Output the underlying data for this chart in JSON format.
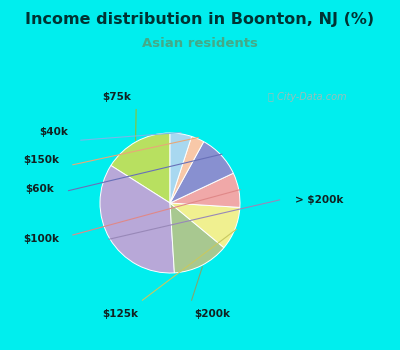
{
  "title": "Income distribution in Boonton, NJ (%)",
  "subtitle": "Asian residents",
  "title_color": "#003333",
  "subtitle_color": "#44aa88",
  "background_color": "#00eeee",
  "chart_bg_top": "#f0f8f0",
  "chart_bg_bottom": "#c8ecd8",
  "watermark": "City-Data.com",
  "labels": [
    "$75k",
    "> $200k",
    "$200k",
    "$125k",
    "$100k",
    "$60k",
    "$150k",
    "$40k"
  ],
  "values": [
    16.0,
    35.0,
    13.0,
    10.0,
    8.0,
    10.0,
    3.0,
    5.0
  ],
  "colors": [
    "#b8e060",
    "#b8a8d8",
    "#a8c890",
    "#f0f090",
    "#f0a8a8",
    "#8890d0",
    "#f8c8a8",
    "#a8d8f0"
  ],
  "startangle": 90
}
